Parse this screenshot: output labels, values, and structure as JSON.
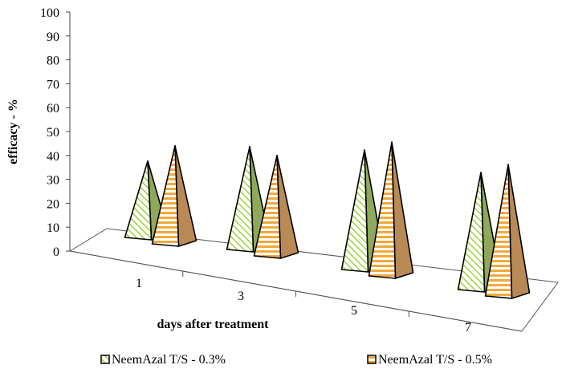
{
  "chart_data": {
    "type": "bar",
    "style": "3d-pyramid",
    "title": "",
    "xlabel": "days after treatment",
    "ylabel": "efficacy - %",
    "categories": [
      "1",
      "3",
      "5",
      "7"
    ],
    "series": [
      {
        "name": "NeemAzal T/S - 0.3%",
        "values": [
          32,
          43,
          50,
          49
        ],
        "color": "#b7e04a"
      },
      {
        "name": "NeemAzal T/S - 0.5%",
        "values": [
          41,
          42,
          56,
          55
        ],
        "color": "#f5b84c"
      }
    ],
    "ylim": [
      0,
      100
    ],
    "yticks": [
      0,
      10,
      20,
      30,
      40,
      50,
      60,
      70,
      80,
      90,
      100
    ],
    "legend_position": "bottom"
  }
}
